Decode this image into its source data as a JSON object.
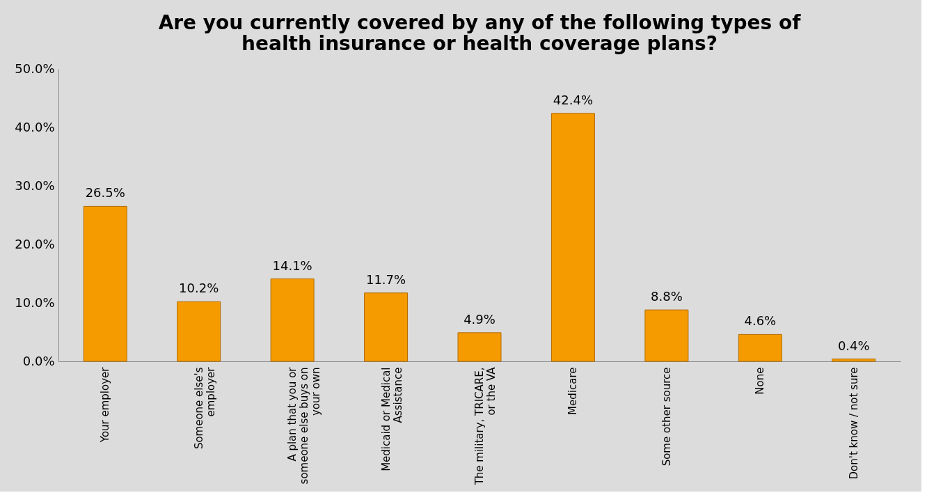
{
  "chart_data": {
    "type": "bar",
    "title": "Are you currently covered by any of the following types of health insurance or health coverage plans?",
    "categories": [
      "Your employer",
      "Someone else's employer",
      "A plan that you or someone else buys on your own",
      "Medicaid or Medical Assistance",
      "The military, TRICARE, or the VA",
      "Medicare",
      "Some other source",
      "None",
      "Don't know / not sure"
    ],
    "values": [
      26.5,
      10.2,
      14.1,
      11.7,
      4.9,
      42.4,
      8.8,
      4.6,
      0.4
    ],
    "color": "#f59b00",
    "ylim": [
      0,
      50
    ],
    "yticks": [
      {
        "value": 0,
        "label": "0.0%"
      },
      {
        "value": 10,
        "label": "10.0%"
      },
      {
        "value": 20,
        "label": "20.0%"
      },
      {
        "value": 30,
        "label": "30.0%"
      },
      {
        "value": 40,
        "label": "40.0%"
      },
      {
        "value": 50,
        "label": "50.0%"
      }
    ],
    "value_labels": [
      "26.5%",
      "10.2%",
      "14.1%",
      "11.7%",
      "4.9%",
      "42.4%",
      "8.8%",
      "4.6%",
      "0.4%"
    ]
  }
}
